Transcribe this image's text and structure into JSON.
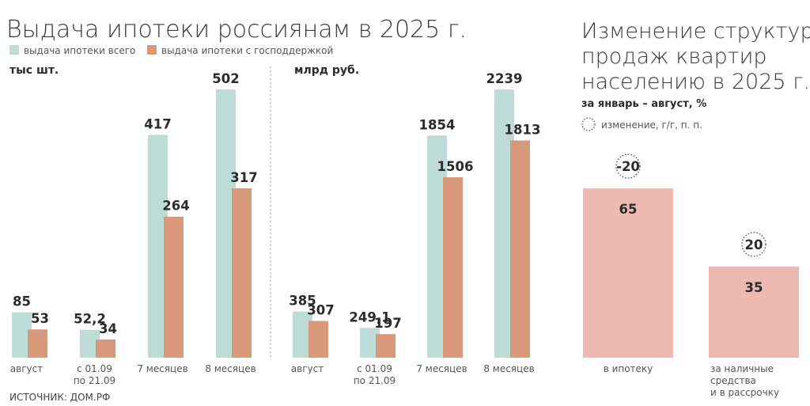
{
  "colors": {
    "total": "#bddcd6",
    "state": "#d8997a",
    "struct": "#eeb9ae",
    "text": "#2b2b2b"
  },
  "left_title": "Выдача ипотеки россиянам в 2025 г.",
  "legend": {
    "total": "выдача ипотеки всего",
    "state": "выдача ипотеки с господдержкой"
  },
  "right_title": [
    "Изменение структуры",
    "продаж квартир",
    "населению в 2025 г."
  ],
  "right_subtitle": "за январь – август, %",
  "right_legend": "изменение, г/г, п. п.",
  "source": "ИСТОЧНИК: ДОМ.РФ",
  "chart_data": [
    {
      "type": "bar",
      "unit": "тыс шт.",
      "categories": [
        [
          "август"
        ],
        [
          "с 01.09",
          "по 21.09"
        ],
        [
          "7 месяцев"
        ],
        [
          "8 месяцев"
        ]
      ],
      "series": [
        {
          "name": "выдача ипотеки всего",
          "values": [
            85,
            52.2,
            417,
            502
          ],
          "labels": [
            "85",
            "52,2",
            "417",
            "502"
          ]
        },
        {
          "name": "выдача ипотеки с господдержкой",
          "values": [
            53,
            34,
            264,
            317
          ],
          "labels": [
            "53",
            "34",
            "264",
            "317"
          ]
        }
      ],
      "ylim": [
        0,
        502
      ]
    },
    {
      "type": "bar",
      "unit": "млрд руб.",
      "categories": [
        [
          "август"
        ],
        [
          "с 01.09",
          "по 21.09"
        ],
        [
          "7 месяцев"
        ],
        [
          "8 месяцев"
        ]
      ],
      "series": [
        {
          "name": "выдача ипотеки всего",
          "values": [
            385,
            249.1,
            1854,
            2239
          ],
          "labels": [
            "385",
            "249,1",
            "1854",
            "2239"
          ]
        },
        {
          "name": "выдача ипотеки с господдержкой",
          "values": [
            307,
            197,
            1506,
            1813
          ],
          "labels": [
            "307",
            "197",
            "1506",
            "1813"
          ]
        }
      ],
      "ylim": [
        0,
        2239
      ]
    },
    {
      "type": "bar",
      "categories": [
        [
          "в ипотеку"
        ],
        [
          "за наличные",
          "средства",
          "и в рассрочку"
        ]
      ],
      "values": [
        65,
        35
      ],
      "labels": [
        "65",
        "35"
      ],
      "change": [
        "-20",
        "20"
      ],
      "ylim": [
        0,
        65
      ]
    }
  ]
}
